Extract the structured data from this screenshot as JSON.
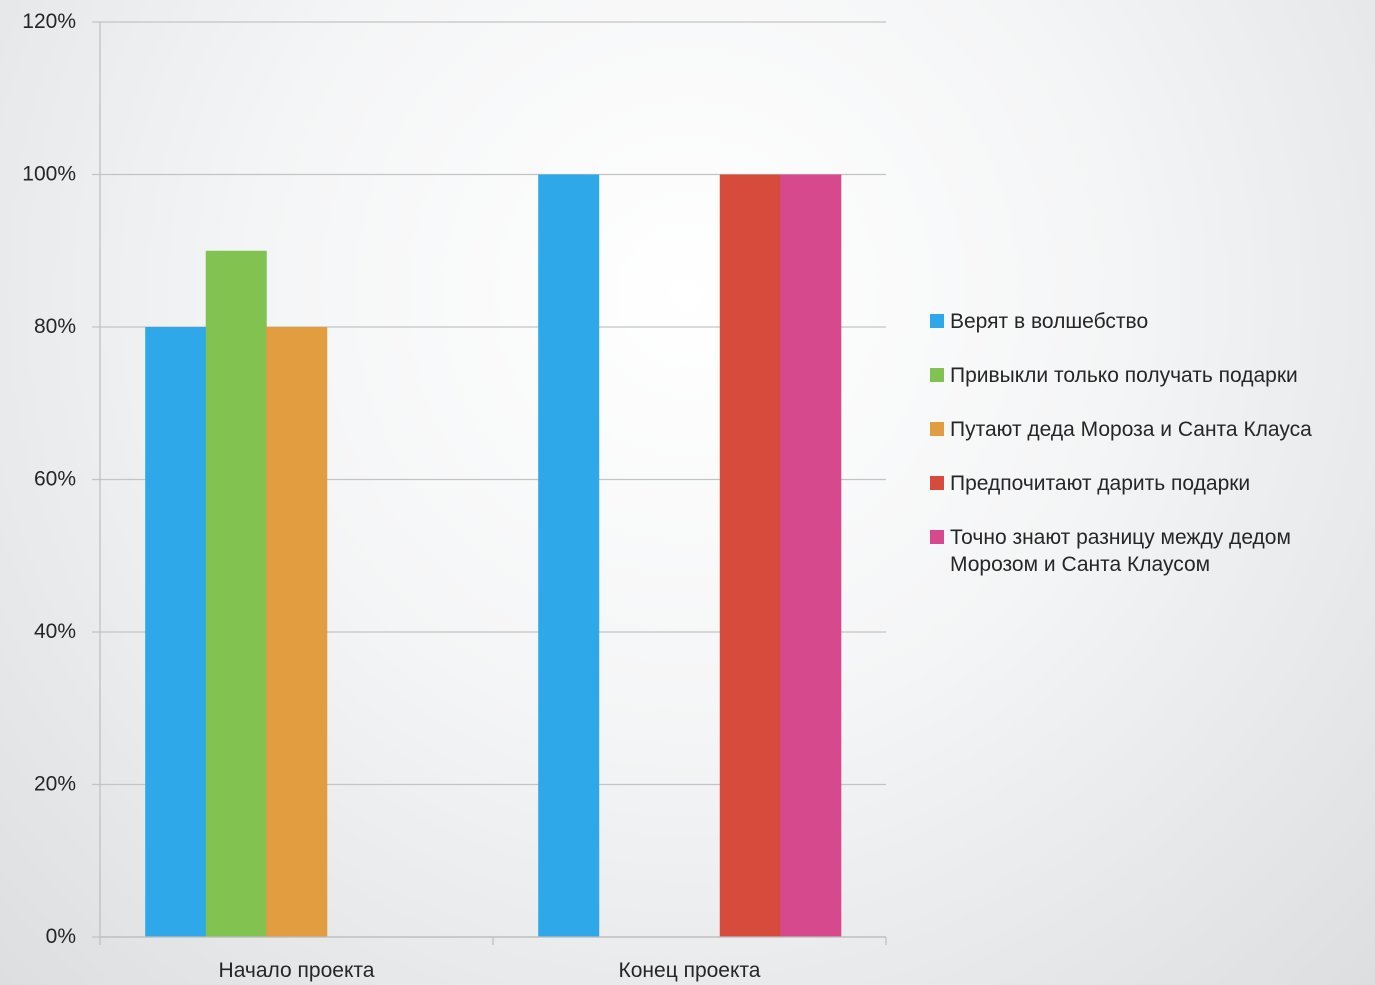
{
  "chart_data": {
    "type": "bar",
    "categories": [
      "Начало проекта",
      "Конец проекта"
    ],
    "series": [
      {
        "name": "Верят в волшебство",
        "color": "#2FA8EA",
        "values": [
          0.8,
          1.0
        ]
      },
      {
        "name": "Привыкли только получать подарки",
        "color": "#82C250",
        "values": [
          0.9,
          0
        ]
      },
      {
        "name": "Путают деда Мороза и Санта Клауса",
        "color": "#E19D3F",
        "values": [
          0.8,
          0
        ]
      },
      {
        "name": "Предпочитают дарить подарки",
        "color": "#D64B3C",
        "values": [
          0,
          1.0
        ]
      },
      {
        "name": "Точно знают разницу между дедом Морозом и Санта Клаусом",
        "color": "#D6498C",
        "values": [
          0,
          1.0
        ]
      }
    ],
    "yticks": [
      "0%",
      "20%",
      "40%",
      "60%",
      "80%",
      "100%",
      "120%"
    ],
    "ylim": [
      0,
      1.2
    ],
    "grid": true,
    "legend": "right"
  }
}
